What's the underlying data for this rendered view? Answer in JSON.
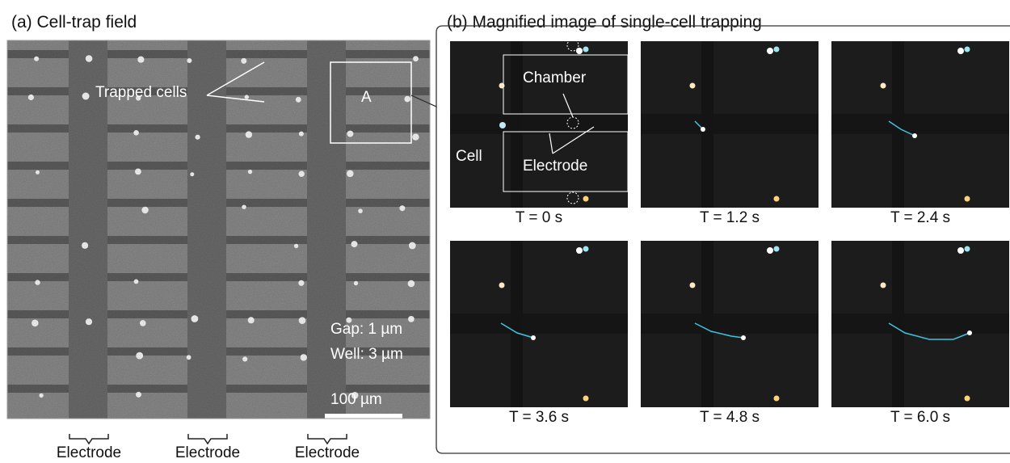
{
  "panel_a": {
    "title": "(a) Cell-trap field",
    "trapped_cells_label": "Trapped cells",
    "region_label": "A",
    "gap_label": "Gap: 1 µm",
    "well_label": "Well: 3 µm",
    "scale_bar_label": "100 µm",
    "electrode_labels": [
      "Electrode",
      "Electrode",
      "Electrode"
    ]
  },
  "panel_b": {
    "title": "(b) Magnified image of single-cell trapping",
    "chamber_label": "Chamber",
    "cell_label": "Cell",
    "electrode_label": "Electrode",
    "frames": [
      {
        "time_label": "T = 0 s"
      },
      {
        "time_label": "T = 1.2 s"
      },
      {
        "time_label": "T = 2.4 s"
      },
      {
        "time_label": "T = 3.6 s"
      },
      {
        "time_label": "T = 4.8 s"
      },
      {
        "time_label": "T = 6.0 s"
      }
    ]
  },
  "colors": {
    "field_bg": "#8a8a8a",
    "electrode_band": "#6e6e6e",
    "dark_stripe": "#5a5a5a",
    "frame_bg": "#1c1c1c",
    "track": "#3fc4e0",
    "cell": "#ffffff"
  }
}
